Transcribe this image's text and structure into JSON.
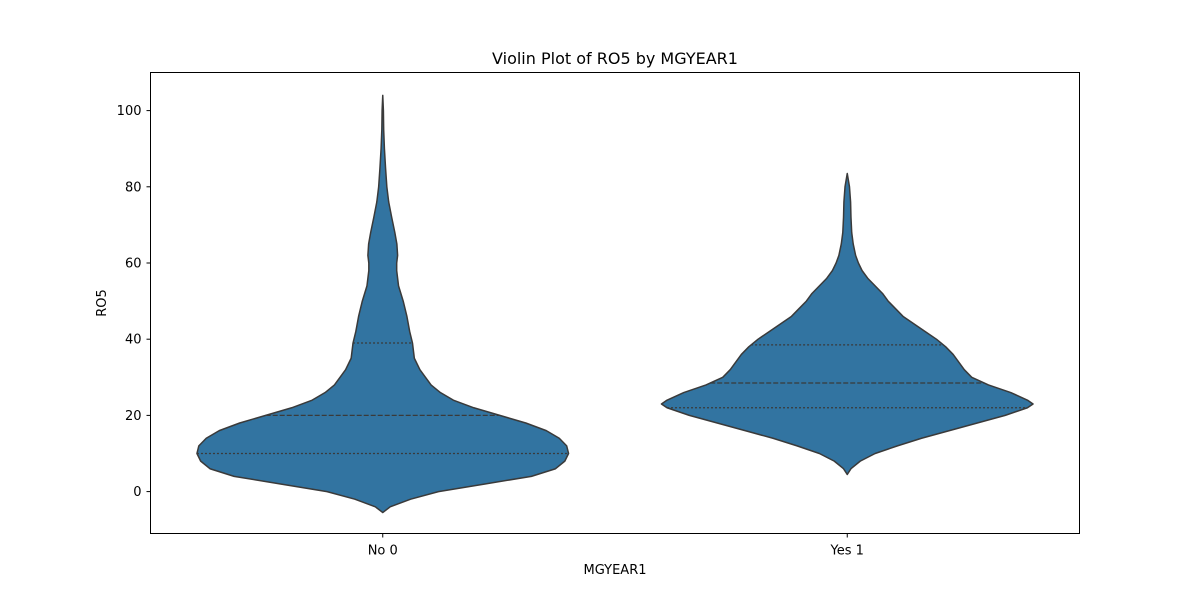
{
  "chart_data": {
    "type": "violin",
    "title": "Violin Plot of RO5 by MGYEAR1",
    "xlabel": "MGYEAR1",
    "ylabel": "RO5",
    "categories": [
      "No 0",
      "Yes 1"
    ],
    "ylim": [
      -11,
      110
    ],
    "yticks": [
      0,
      20,
      40,
      60,
      80,
      100
    ],
    "grid": false,
    "fill_color": "#3274a1",
    "edge_color": "#3a3a3a",
    "violins": [
      {
        "category": "No 0",
        "min": -5.5,
        "max": 104,
        "quartiles": {
          "q1": 10,
          "median": 20,
          "q3": 39
        },
        "density": [
          [
            -5.5,
            0
          ],
          [
            -4,
            0.04
          ],
          [
            -2,
            0.15
          ],
          [
            0,
            0.3
          ],
          [
            2,
            0.55
          ],
          [
            4,
            0.8
          ],
          [
            6,
            0.93
          ],
          [
            8,
            0.98
          ],
          [
            10,
            1.0
          ],
          [
            12,
            0.99
          ],
          [
            14,
            0.95
          ],
          [
            16,
            0.88
          ],
          [
            18,
            0.77
          ],
          [
            20,
            0.63
          ],
          [
            22,
            0.49
          ],
          [
            24,
            0.38
          ],
          [
            26,
            0.31
          ],
          [
            28,
            0.26
          ],
          [
            30,
            0.23
          ],
          [
            32,
            0.2
          ],
          [
            35,
            0.17
          ],
          [
            39,
            0.16
          ],
          [
            42,
            0.145
          ],
          [
            46,
            0.13
          ],
          [
            50,
            0.11
          ],
          [
            54,
            0.085
          ],
          [
            58,
            0.075
          ],
          [
            60,
            0.075
          ],
          [
            62,
            0.08
          ],
          [
            65,
            0.076
          ],
          [
            68,
            0.065
          ],
          [
            72,
            0.048
          ],
          [
            76,
            0.032
          ],
          [
            80,
            0.022
          ],
          [
            85,
            0.015
          ],
          [
            90,
            0.009
          ],
          [
            95,
            0.005
          ],
          [
            100,
            0.0035
          ],
          [
            104,
            0
          ]
        ]
      },
      {
        "category": "Yes 1",
        "min": 4.5,
        "max": 83.5,
        "quartiles": {
          "q1": 22,
          "median": 28.5,
          "q3": 38.5
        },
        "density": [
          [
            4.5,
            0
          ],
          [
            6,
            0.02
          ],
          [
            8,
            0.07
          ],
          [
            10,
            0.15
          ],
          [
            12,
            0.27
          ],
          [
            14,
            0.4
          ],
          [
            16,
            0.55
          ],
          [
            18,
            0.7
          ],
          [
            20,
            0.85
          ],
          [
            22,
            0.97
          ],
          [
            23,
            1.0
          ],
          [
            24,
            0.97
          ],
          [
            26,
            0.88
          ],
          [
            28,
            0.76
          ],
          [
            30,
            0.67
          ],
          [
            32,
            0.63
          ],
          [
            34,
            0.6
          ],
          [
            36,
            0.57
          ],
          [
            38,
            0.53
          ],
          [
            40,
            0.48
          ],
          [
            42,
            0.42
          ],
          [
            44,
            0.36
          ],
          [
            46,
            0.3
          ],
          [
            48,
            0.26
          ],
          [
            50,
            0.22
          ],
          [
            52,
            0.19
          ],
          [
            54,
            0.15
          ],
          [
            56,
            0.11
          ],
          [
            58,
            0.08
          ],
          [
            60,
            0.06
          ],
          [
            62,
            0.045
          ],
          [
            65,
            0.032
          ],
          [
            68,
            0.024
          ],
          [
            72,
            0.02
          ],
          [
            76,
            0.018
          ],
          [
            80,
            0.012
          ],
          [
            83.5,
            0
          ]
        ]
      }
    ]
  }
}
